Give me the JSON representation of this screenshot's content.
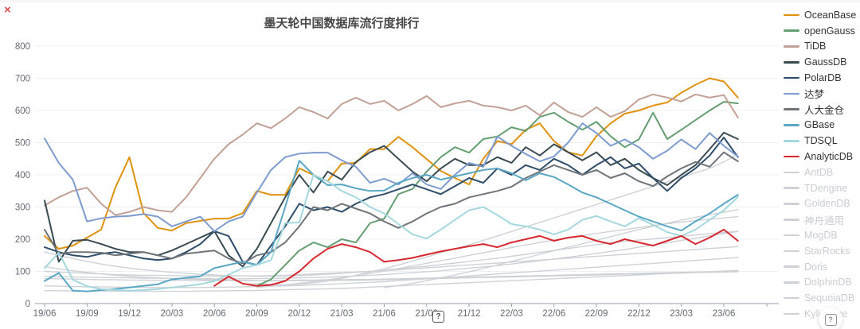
{
  "title": "墨天轮中国数据库流行度排行",
  "icons": {
    "close_glyph": "×",
    "center_help_glyph": "?",
    "corner_help_glyph": "?"
  },
  "chart_data": {
    "type": "line",
    "x_labels": [
      "19/06",
      "19/09",
      "19/12",
      "20/03",
      "20/06",
      "20/09",
      "20/12",
      "21/03",
      "21/06",
      "21/09",
      "21/12",
      "22/03",
      "22/06",
      "22/09",
      "22/12",
      "23/03",
      "23/06"
    ],
    "y_ticks": [
      0,
      100,
      200,
      300,
      400,
      500,
      600,
      700,
      800
    ],
    "ylim": [
      0,
      800
    ],
    "months_per_point": 1,
    "points_start": "19/06",
    "points_end": "23/07",
    "grid": "horizontal-only",
    "legend_position": "right",
    "colors": {
      "axis_label": "#646a73",
      "grid_line": "#edf1f6",
      "axis_line": "#9aa0ab",
      "inactive_series": "#ced2d7"
    },
    "series": [
      {
        "name": "OceanBase",
        "color": "#e0920f",
        "active": true,
        "values": [
          210,
          170,
          180,
          205,
          230,
          360,
          455,
          281,
          235,
          227,
          250,
          257,
          264,
          264,
          281,
          350,
          338,
          338,
          420,
          400,
          380,
          435,
          437,
          480,
          480,
          518,
          486,
          449,
          412,
          390,
          370,
          450,
          505,
          495,
          540,
          560,
          505,
          470,
          460,
          520,
          560,
          590,
          600,
          615,
          625,
          655,
          680,
          700,
          690,
          640
        ]
      },
      {
        "name": "openGauss",
        "color": "#649e72",
        "active": true,
        "values": [
          null,
          null,
          null,
          null,
          null,
          null,
          null,
          null,
          null,
          null,
          null,
          null,
          null,
          null,
          null,
          55,
          75,
          120,
          165,
          190,
          175,
          200,
          190,
          250,
          264,
          340,
          356,
          410,
          455,
          486,
          469,
          511,
          519,
          548,
          536,
          580,
          593,
          565,
          540,
          565,
          520,
          486,
          510,
          593,
          511,
          540,
          570,
          600,
          627,
          622
        ]
      },
      {
        "name": "TiDB",
        "color": "#c2a096",
        "active": true,
        "values": [
          305,
          330,
          350,
          360,
          310,
          275,
          285,
          300,
          290,
          285,
          330,
          390,
          450,
          495,
          525,
          560,
          545,
          575,
          610,
          595,
          575,
          620,
          640,
          620,
          630,
          600,
          620,
          645,
          610,
          622,
          630,
          615,
          610,
          600,
          615,
          585,
          625,
          595,
          580,
          610,
          580,
          598,
          634,
          650,
          640,
          628,
          650,
          640,
          648,
          578
        ]
      },
      {
        "name": "GaussDB",
        "color": "#394a52",
        "active": true,
        "values": [
          320,
          130,
          195,
          198,
          185,
          170,
          160,
          160,
          150,
          165,
          185,
          205,
          225,
          150,
          115,
          170,
          250,
          330,
          400,
          345,
          410,
          385,
          440,
          470,
          490,
          450,
          410,
          380,
          420,
          450,
          430,
          430,
          455,
          437,
          486,
          460,
          495,
          470,
          445,
          470,
          430,
          450,
          415,
          390,
          368,
          400,
          430,
          480,
          531,
          511
        ]
      },
      {
        "name": "PolarDB",
        "color": "#2e4d6b",
        "active": true,
        "values": [
          175,
          160,
          150,
          145,
          155,
          160,
          150,
          140,
          135,
          140,
          160,
          185,
          225,
          210,
          130,
          120,
          180,
          240,
          310,
          290,
          300,
          285,
          310,
          330,
          340,
          355,
          370,
          355,
          340,
          365,
          390,
          375,
          420,
          400,
          430,
          415,
          450,
          430,
          400,
          430,
          455,
          420,
          435,
          390,
          350,
          390,
          420,
          460,
          516,
          455
        ]
      },
      {
        "name": "达梦",
        "color": "#7d9bce",
        "active": true,
        "values": [
          513,
          437,
          385,
          255,
          265,
          270,
          272,
          278,
          270,
          240,
          255,
          270,
          225,
          255,
          270,
          345,
          415,
          455,
          466,
          469,
          469,
          445,
          425,
          375,
          388,
          370,
          405,
          370,
          356,
          400,
          437,
          425,
          519,
          490,
          465,
          442,
          457,
          500,
          560,
          530,
          490,
          510,
          486,
          450,
          475,
          510,
          480,
          530,
          490,
          457
        ]
      },
      {
        "name": "人大金仓",
        "color": "#6f7478",
        "active": true,
        "values": [
          230,
          155,
          160,
          160,
          158,
          150,
          155,
          160,
          150,
          140,
          155,
          160,
          165,
          140,
          125,
          150,
          160,
          190,
          240,
          300,
          290,
          310,
          295,
          280,
          255,
          235,
          255,
          280,
          300,
          310,
          330,
          340,
          350,
          363,
          390,
          410,
          430,
          415,
          400,
          415,
          390,
          405,
          380,
          365,
          395,
          420,
          440,
          425,
          470,
          442
        ]
      },
      {
        "name": "GBase",
        "color": "#5aa7c5",
        "active": true,
        "values": [
          70,
          95,
          40,
          38,
          42,
          45,
          50,
          55,
          60,
          75,
          80,
          85,
          110,
          120,
          130,
          120,
          160,
          300,
          444,
          400,
          368,
          370,
          358,
          350,
          351,
          375,
          390,
          400,
          385,
          395,
          405,
          415,
          420,
          405,
          383,
          405,
          393,
          370,
          345,
          330,
          310,
          290,
          270,
          255,
          240,
          227,
          255,
          280,
          310,
          338
        ]
      },
      {
        "name": "TDSQL",
        "color": "#a5d8de",
        "active": true,
        "values": [
          110,
          158,
          74,
          54,
          45,
          42,
          40,
          42,
          45,
          50,
          55,
          60,
          70,
          90,
          110,
          120,
          135,
          250,
          252,
          400,
          380,
          350,
          330,
          300,
          280,
          247,
          215,
          202,
          230,
          260,
          290,
          300,
          275,
          247,
          240,
          230,
          215,
          230,
          260,
          272,
          255,
          240,
          265,
          245,
          222,
          210,
          230,
          260,
          290,
          331
        ]
      },
      {
        "name": "AnalyticDB",
        "color": "#d7282f",
        "active": true,
        "values": [
          null,
          null,
          null,
          null,
          null,
          null,
          null,
          null,
          null,
          null,
          null,
          null,
          55,
          84,
          62,
          55,
          58,
          70,
          100,
          140,
          170,
          185,
          175,
          160,
          130,
          135,
          142,
          152,
          162,
          170,
          178,
          185,
          175,
          190,
          200,
          210,
          195,
          205,
          210,
          195,
          185,
          200,
          190,
          180,
          195,
          210,
          185,
          205,
          230,
          195
        ]
      },
      {
        "name": "AntDB",
        "color": "#ced2d7",
        "active": false,
        "values": [
          100,
          98,
          96,
          94,
          92,
          90,
          89,
          88,
          88,
          87,
          86,
          86,
          85,
          85,
          86,
          86,
          87,
          88,
          90,
          92,
          94,
          96,
          98,
          100,
          102,
          105,
          108,
          111,
          114,
          117,
          120,
          123,
          126,
          129,
          132,
          135,
          138,
          141,
          144,
          147,
          150,
          153,
          156,
          159,
          162,
          165,
          168,
          171,
          174,
          177
        ]
      },
      {
        "name": "TDengine",
        "color": "#ced2d7",
        "active": false,
        "values": [
          160,
          150,
          140,
          131,
          123,
          116,
          110,
          105,
          101,
          97,
          94,
          91,
          89,
          87,
          86,
          85,
          85,
          86,
          87,
          89,
          91,
          94,
          97,
          100,
          104,
          108,
          112,
          116,
          121,
          126,
          131,
          136,
          141,
          147,
          153,
          159,
          165,
          171,
          177,
          183,
          189,
          193,
          197,
          201,
          205,
          209,
          213,
          217,
          221,
          225
        ]
      },
      {
        "name": "GoldenDB",
        "color": "#ced2d7",
        "active": false,
        "values": [
          null,
          null,
          null,
          null,
          null,
          null,
          null,
          null,
          null,
          null,
          null,
          null,
          null,
          null,
          null,
          50,
          54,
          58,
          63,
          68,
          74,
          80,
          87,
          94,
          101,
          109,
          117,
          125,
          133,
          141,
          150,
          158,
          166,
          174,
          182,
          190,
          197,
          204,
          211,
          218,
          224,
          230,
          236,
          242,
          248,
          253,
          258,
          262,
          266,
          270
        ]
      },
      {
        "name": "神舟通用",
        "color": "#ced2d7",
        "active": false,
        "values": [
          78,
          77,
          76,
          75,
          74,
          74,
          73,
          73,
          72,
          72,
          72,
          71,
          71,
          71,
          71,
          71,
          72,
          72,
          73,
          73,
          74,
          74,
          75,
          75,
          76,
          77,
          78,
          79,
          80,
          81,
          82,
          83,
          84,
          85,
          86,
          87,
          88,
          89,
          90,
          91,
          92,
          93,
          94,
          95,
          96,
          97,
          98,
          99,
          100,
          101
        ]
      },
      {
        "name": "MogDB",
        "color": "#ced2d7",
        "active": false,
        "values": [
          null,
          null,
          null,
          null,
          null,
          null,
          null,
          null,
          null,
          null,
          null,
          null,
          null,
          null,
          60,
          62,
          60,
          58,
          60,
          64,
          70,
          78,
          88,
          98,
          108,
          120,
          132,
          145,
          158,
          170,
          183,
          196,
          210,
          224,
          238,
          252,
          266,
          280,
          294,
          308,
          322,
          336,
          350,
          364,
          378,
          392,
          406,
          420,
          440,
          465
        ]
      },
      {
        "name": "StarRocks",
        "color": "#ced2d7",
        "active": false,
        "values": [
          null,
          null,
          null,
          null,
          null,
          null,
          null,
          null,
          null,
          null,
          null,
          null,
          null,
          null,
          null,
          null,
          null,
          null,
          null,
          null,
          null,
          null,
          null,
          null,
          50,
          56,
          63,
          71,
          80,
          89,
          99,
          109,
          120,
          131,
          142,
          153,
          164,
          175,
          186,
          197,
          208,
          219,
          230,
          240,
          250,
          259,
          268,
          276,
          284,
          292
        ]
      },
      {
        "name": "Doris",
        "color": "#ced2d7",
        "active": false,
        "values": [
          85,
          84,
          83,
          82,
          81,
          80,
          80,
          79,
          79,
          78,
          78,
          78,
          77,
          77,
          77,
          78,
          78,
          79,
          80,
          81,
          82,
          84,
          86,
          88,
          90,
          93,
          96,
          99,
          102,
          106,
          110,
          114,
          118,
          123,
          128,
          133,
          138,
          144,
          150,
          156,
          162,
          168,
          175,
          182,
          189,
          196,
          203,
          210,
          217,
          224
        ]
      },
      {
        "name": "DolphinDB",
        "color": "#ced2d7",
        "active": false,
        "values": [
          55,
          54,
          53,
          52,
          52,
          51,
          51,
          50,
          50,
          50,
          50,
          50,
          51,
          51,
          52,
          53,
          54,
          55,
          56,
          58,
          60,
          62,
          64,
          66,
          68,
          71,
          74,
          77,
          80,
          83,
          86,
          89,
          92,
          95,
          98,
          101,
          104,
          107,
          110,
          113,
          116,
          119,
          122,
          125,
          128,
          131,
          134,
          137,
          140,
          143
        ]
      },
      {
        "name": "SequoiaDB",
        "color": "#ced2d7",
        "active": false,
        "values": [
          115,
          108,
          102,
          97,
          92,
          88,
          85,
          82,
          80,
          78,
          76,
          75,
          74,
          73,
          72,
          72,
          71,
          71,
          71,
          71,
          71,
          72,
          72,
          73,
          74,
          75,
          76,
          77,
          78,
          79,
          80,
          81,
          82,
          83,
          84,
          85,
          86,
          87,
          88,
          89,
          90,
          91,
          92,
          93,
          94,
          95,
          96,
          97,
          98,
          99
        ]
      },
      {
        "name": "Kyligence",
        "color": "#ced2d7",
        "active": false,
        "values": [
          40,
          40,
          39,
          39,
          39,
          38,
          38,
          38,
          38,
          38,
          38,
          39,
          39,
          40,
          40,
          41,
          42,
          43,
          44,
          45,
          46,
          47,
          49,
          51,
          53,
          55,
          57,
          59,
          61,
          63,
          65,
          67,
          69,
          71,
          73,
          75,
          77,
          79,
          81,
          83,
          85,
          87,
          89,
          91,
          93,
          95,
          97,
          99,
          101,
          103
        ]
      }
    ]
  }
}
